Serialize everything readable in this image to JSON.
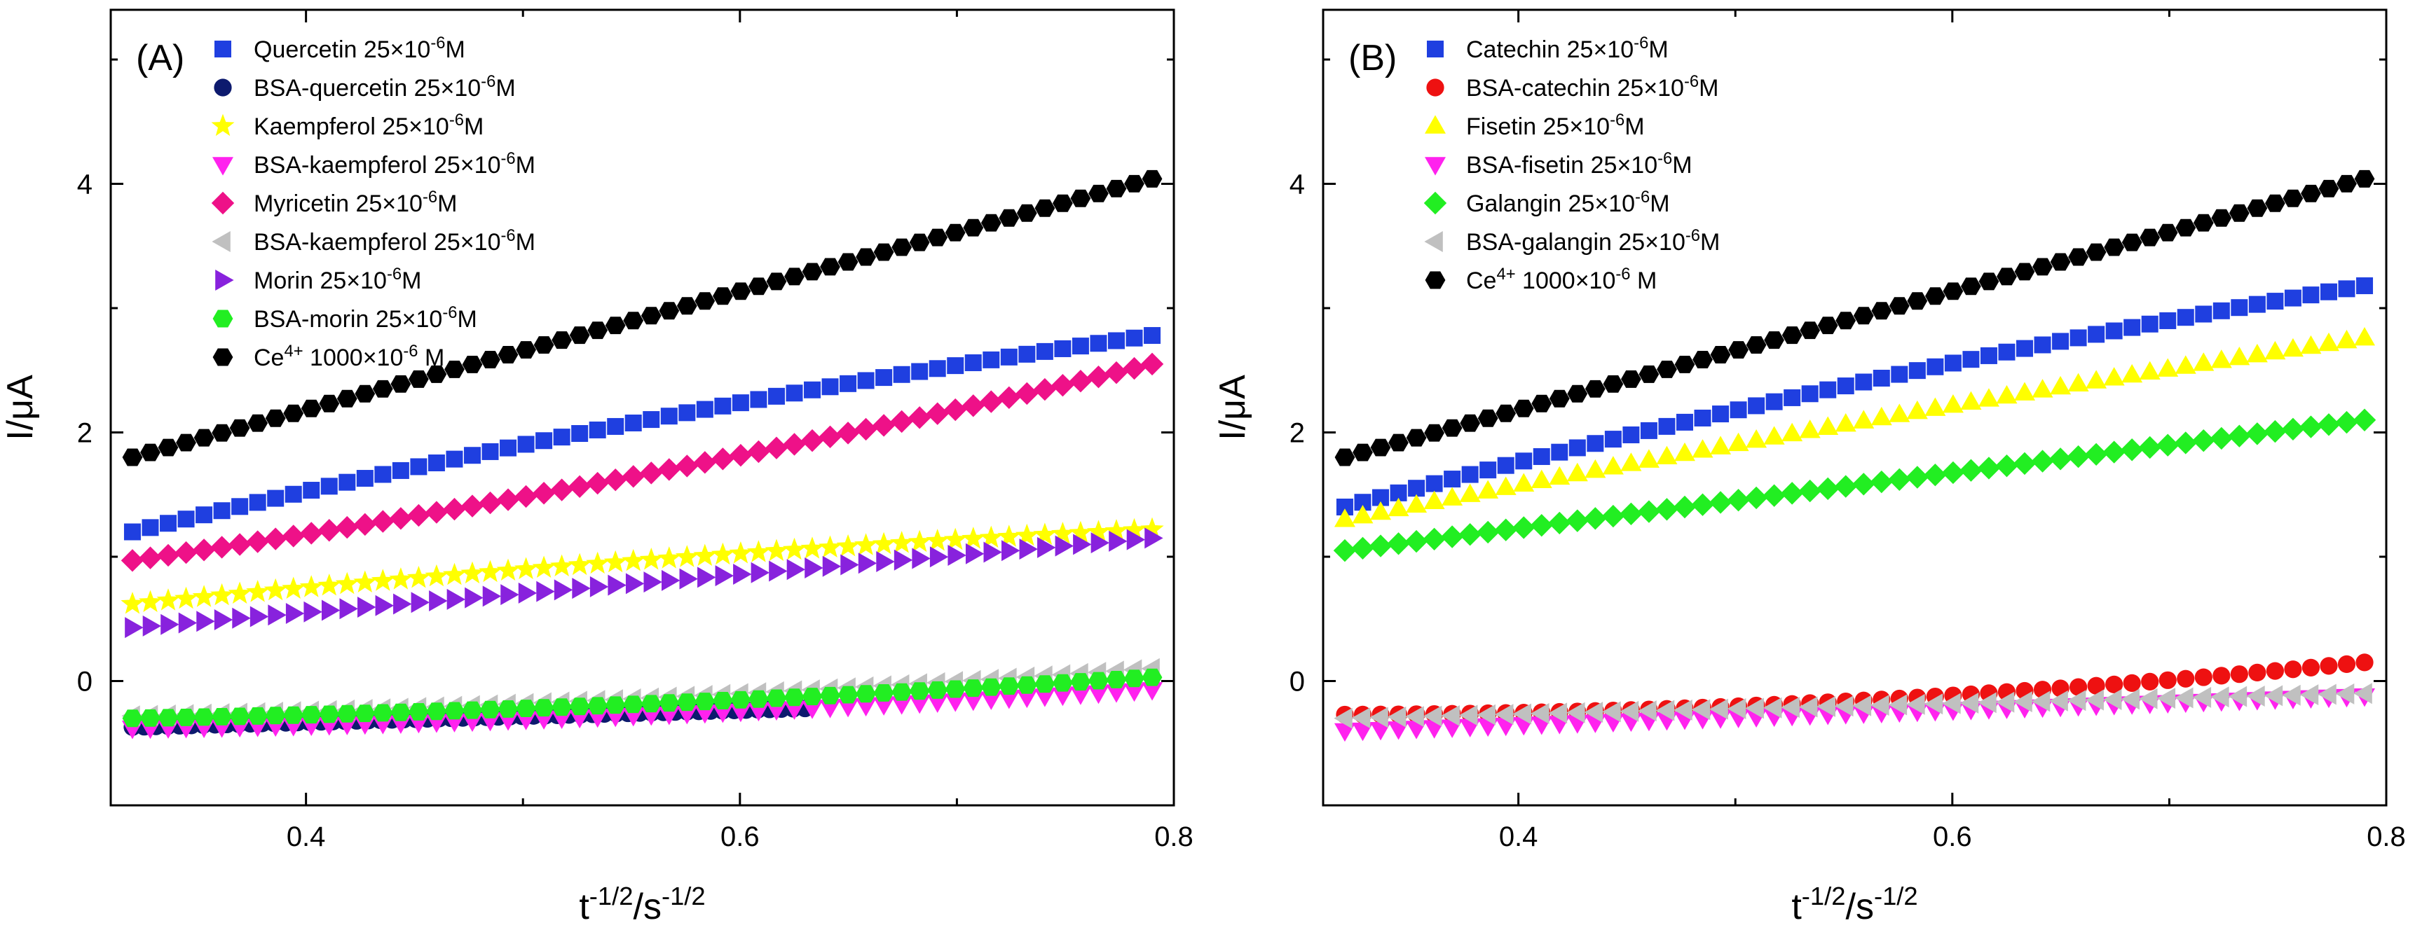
{
  "figure": {
    "panels": [
      {
        "id": "A",
        "label": "(A)",
        "ylabel": "I/μA",
        "xlabel": "t^-1/2/s^-1/2"
      },
      {
        "id": "B",
        "label": "(B)",
        "ylabel": "I/μA",
        "xlabel": "t^-1/2/s^-1/2"
      }
    ]
  },
  "chart_data": [
    {
      "type": "scatter",
      "title": "(A)",
      "xlabel": "t-1/2/s-1/2",
      "ylabel": "I/μA",
      "xlim": [
        0.31,
        0.8
      ],
      "ylim": [
        -1,
        5.4
      ],
      "xticks": [
        0.4,
        0.6,
        0.8
      ],
      "yticks": [
        0,
        2,
        4
      ],
      "legend_position": "top-left",
      "series": [
        {
          "name": "Quercetin 25×10⁻⁶M",
          "marker": "square",
          "color": "#1f3fe0",
          "x_start": 0.32,
          "x_end": 0.79,
          "y_start": 1.2,
          "y_end": 2.78,
          "curvature": -0.1
        },
        {
          "name": "BSA-quercetin 25×10⁻⁶M",
          "marker": "circle",
          "color": "#0d1a6e",
          "x_start": 0.32,
          "x_end": 0.63,
          "y_start": -0.37,
          "y_end": -0.22,
          "curvature": 0
        },
        {
          "name": "Kaempferol 25×10⁻⁶M",
          "marker": "star",
          "color": "#ffff00",
          "x_start": 0.32,
          "x_end": 0.79,
          "y_start": 0.62,
          "y_end": 1.22,
          "curvature": -0.05
        },
        {
          "name": "BSA-kaempferol 25×10⁻⁶M",
          "marker": "triangle-down",
          "color": "#ff22ee",
          "x_start": 0.32,
          "x_end": 0.79,
          "y_start": -0.38,
          "y_end": -0.07,
          "curvature": 0.05
        },
        {
          "name": "Myricetin 25×10⁻⁶M",
          "marker": "diamond",
          "color": "#ee1188",
          "x_start": 0.32,
          "x_end": 0.79,
          "y_start": 0.97,
          "y_end": 2.55,
          "curvature": 0.1
        },
        {
          "name": "BSA-kaempferol 25×10⁻⁶M",
          "marker": "triangle-left",
          "color": "#c0c0c0",
          "x_start": 0.32,
          "x_end": 0.79,
          "y_start": -0.28,
          "y_end": 0.1,
          "curvature": 0.05
        },
        {
          "name": "Morin 25×10⁻⁶M",
          "marker": "triangle-right",
          "color": "#8822dd",
          "x_start": 0.32,
          "x_end": 0.79,
          "y_start": 0.43,
          "y_end": 1.15,
          "curvature": 0
        },
        {
          "name": "BSA-morin 25×10⁻⁶M",
          "marker": "hexagon",
          "color": "#22ee22",
          "x_start": 0.32,
          "x_end": 0.79,
          "y_start": -0.3,
          "y_end": 0.03,
          "curvature": 0.05
        },
        {
          "name": "Ce⁴⁺ 1000×10⁻⁶ M",
          "marker": "hexagon",
          "color": "#000000",
          "x_start": 0.32,
          "x_end": 0.79,
          "y_start": 1.8,
          "y_end": 4.04,
          "curvature": 0
        }
      ]
    },
    {
      "type": "scatter",
      "title": "(B)",
      "xlabel": "t-1/2/s-1/2",
      "ylabel": "I/μA",
      "xlim": [
        0.31,
        0.8
      ],
      "ylim": [
        -1,
        5.4
      ],
      "xticks": [
        0.4,
        0.6,
        0.8
      ],
      "yticks": [
        0,
        2,
        4
      ],
      "legend_position": "top-left",
      "series": [
        {
          "name": "Catechin 25×10⁻⁶M",
          "marker": "square",
          "color": "#1f3fe0",
          "x_start": 0.32,
          "x_end": 0.79,
          "y_start": 1.4,
          "y_end": 3.18,
          "curvature": -0.1
        },
        {
          "name": "BSA-catechin 25×10⁻⁶M",
          "marker": "circle",
          "color": "#ee1111",
          "x_start": 0.32,
          "x_end": 0.79,
          "y_start": -0.27,
          "y_end": 0.15,
          "curvature": 0.1
        },
        {
          "name": "Fisetin 25×10⁻⁶M",
          "marker": "triangle-up",
          "color": "#ffff00",
          "x_start": 0.32,
          "x_end": 0.79,
          "y_start": 1.3,
          "y_end": 2.76,
          "curvature": -0.05
        },
        {
          "name": "BSA-fisetin 25×10⁻⁶M",
          "marker": "triangle-down",
          "color": "#ff22ee",
          "x_start": 0.32,
          "x_end": 0.79,
          "y_start": -0.4,
          "y_end": -0.12,
          "curvature": 0
        },
        {
          "name": "Galangin 25×10⁻⁶M",
          "marker": "diamond",
          "color": "#22ee22",
          "x_start": 0.32,
          "x_end": 0.79,
          "y_start": 1.05,
          "y_end": 2.1,
          "curvature": 0
        },
        {
          "name": "BSA-galangin 25×10⁻⁶M",
          "marker": "triangle-left",
          "color": "#c0c0c0",
          "x_start": 0.32,
          "x_end": 0.79,
          "y_start": -0.3,
          "y_end": -0.1,
          "curvature": 0
        },
        {
          "name": "Ce⁴⁺ 1000×10⁻⁶ M",
          "marker": "hexagon",
          "color": "#000000",
          "x_start": 0.32,
          "x_end": 0.79,
          "y_start": 1.8,
          "y_end": 4.04,
          "curvature": 0
        }
      ]
    }
  ]
}
